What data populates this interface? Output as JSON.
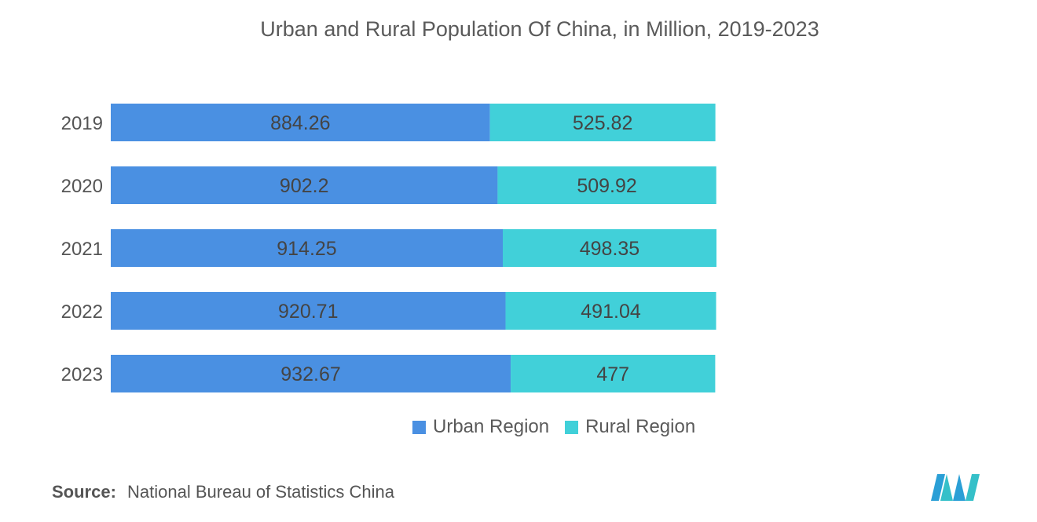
{
  "title": "Urban and Rural Population Of China, in Million, 2019-2023",
  "source": {
    "label": "Source:",
    "text": "National Bureau of Statistics China"
  },
  "colors": {
    "urban": "#4a90e2",
    "rural": "#41d0d9"
  },
  "chart_data": {
    "type": "bar",
    "orientation": "horizontal",
    "stacked": true,
    "categories": [
      "2019",
      "2020",
      "2021",
      "2022",
      "2023"
    ],
    "series": [
      {
        "name": "Urban Region",
        "values": [
          884.26,
          902.2,
          914.25,
          920.71,
          932.67
        ]
      },
      {
        "name": "Rural Region",
        "values": [
          525.82,
          509.92,
          498.35,
          491.04,
          477
        ]
      }
    ],
    "data_labels": [
      [
        "884.26",
        "902.2",
        "914.25",
        "920.71",
        "932.67"
      ],
      [
        "525.82",
        "509.92",
        "498.35",
        "491.04",
        "477"
      ]
    ],
    "grid": false,
    "legend_position": "bottom-right"
  }
}
